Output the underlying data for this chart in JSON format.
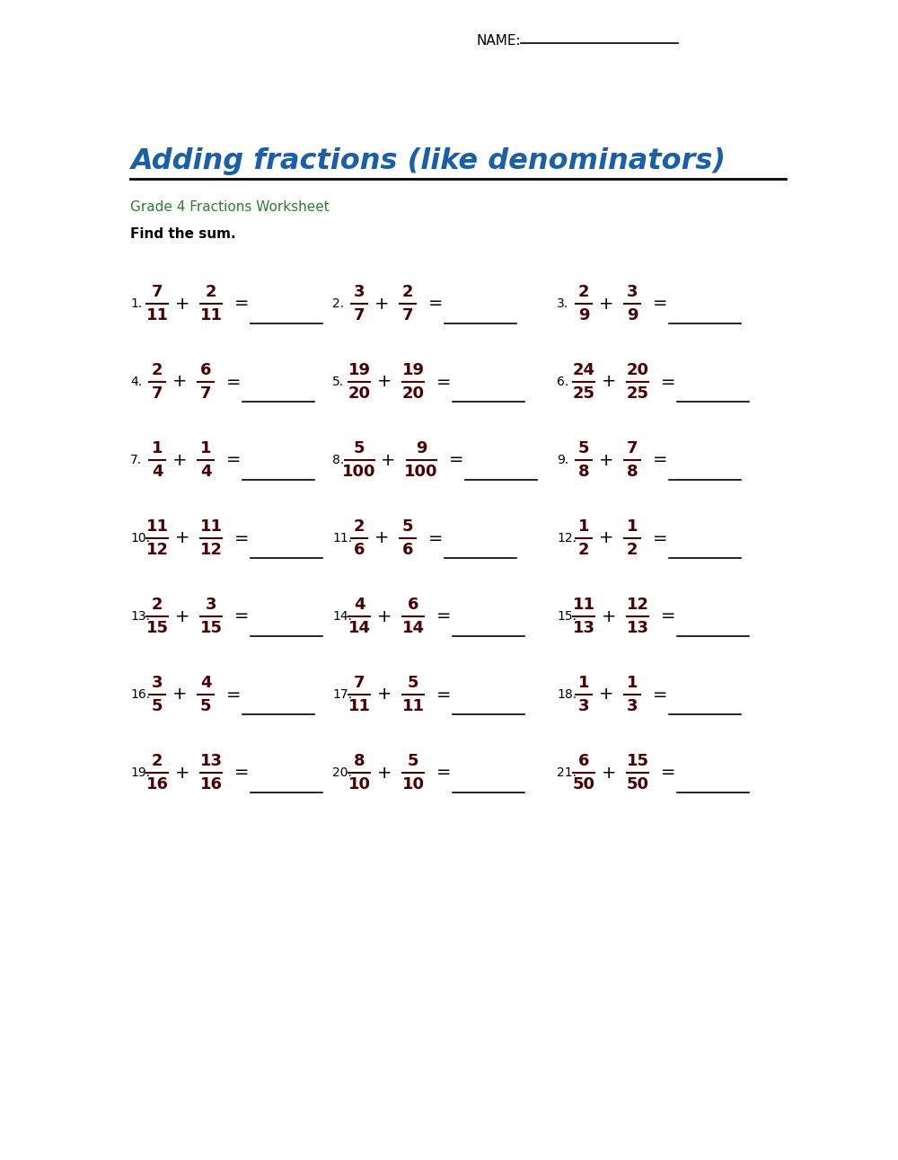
{
  "title": "Adding fractions (like denominators)",
  "subtitle": "Grade 4 Fractions Worksheet",
  "instruction": "Find the sum.",
  "name_label": "NAME:",
  "title_color": "#1a5fa8",
  "subtitle_color": "#2e7d32",
  "frac_color": "#4a0000",
  "problems": [
    {
      "num": 1,
      "n1": "7",
      "d1": "11",
      "n2": "2",
      "d2": "11"
    },
    {
      "num": 2,
      "n1": "3",
      "d1": "7",
      "n2": "2",
      "d2": "7"
    },
    {
      "num": 3,
      "n1": "2",
      "d1": "9",
      "n2": "3",
      "d2": "9"
    },
    {
      "num": 4,
      "n1": "2",
      "d1": "7",
      "n2": "6",
      "d2": "7"
    },
    {
      "num": 5,
      "n1": "19",
      "d1": "20",
      "n2": "19",
      "d2": "20"
    },
    {
      "num": 6,
      "n1": "24",
      "d1": "25",
      "n2": "20",
      "d2": "25"
    },
    {
      "num": 7,
      "n1": "1",
      "d1": "4",
      "n2": "1",
      "d2": "4"
    },
    {
      "num": 8,
      "n1": "5",
      "d1": "100",
      "n2": "9",
      "d2": "100"
    },
    {
      "num": 9,
      "n1": "5",
      "d1": "8",
      "n2": "7",
      "d2": "8"
    },
    {
      "num": 10,
      "n1": "11",
      "d1": "12",
      "n2": "11",
      "d2": "12"
    },
    {
      "num": 11,
      "n1": "2",
      "d1": "6",
      "n2": "5",
      "d2": "6"
    },
    {
      "num": 12,
      "n1": "1",
      "d1": "2",
      "n2": "1",
      "d2": "2"
    },
    {
      "num": 13,
      "n1": "2",
      "d1": "15",
      "n2": "3",
      "d2": "15"
    },
    {
      "num": 14,
      "n1": "4",
      "d1": "14",
      "n2": "6",
      "d2": "14"
    },
    {
      "num": 15,
      "n1": "11",
      "d1": "13",
      "n2": "12",
      "d2": "13"
    },
    {
      "num": 16,
      "n1": "3",
      "d1": "5",
      "n2": "4",
      "d2": "5"
    },
    {
      "num": 17,
      "n1": "7",
      "d1": "11",
      "n2": "5",
      "d2": "11"
    },
    {
      "num": 18,
      "n1": "1",
      "d1": "3",
      "n2": "1",
      "d2": "3"
    },
    {
      "num": 19,
      "n1": "2",
      "d1": "16",
      "n2": "13",
      "d2": "16"
    },
    {
      "num": 20,
      "n1": "8",
      "d1": "10",
      "n2": "5",
      "d2": "10"
    },
    {
      "num": 21,
      "n1": "6",
      "d1": "50",
      "n2": "15",
      "d2": "50"
    }
  ],
  "bg_color": "#ffffff"
}
